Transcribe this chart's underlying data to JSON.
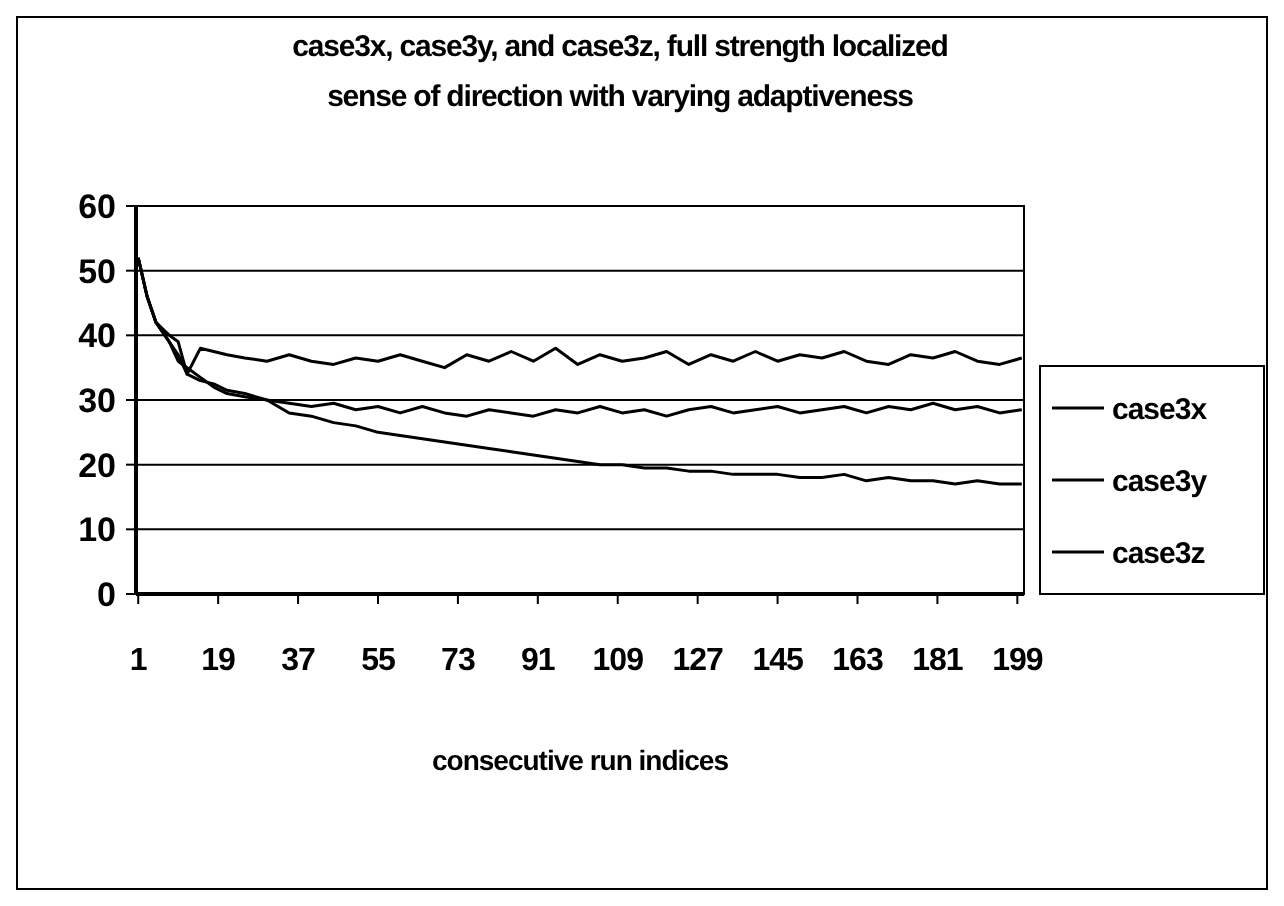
{
  "chart_data": {
    "type": "line",
    "title": "case3x, case3y, and case3z, full strength localized\nsense of direction with varying adaptiveness",
    "xlabel": "consecutive run indices",
    "x": [
      1,
      3,
      5,
      8,
      10,
      12,
      15,
      18,
      21,
      25,
      30,
      35,
      40,
      45,
      50,
      55,
      60,
      65,
      70,
      75,
      80,
      85,
      90,
      95,
      100,
      105,
      110,
      115,
      120,
      125,
      130,
      135,
      140,
      145,
      150,
      155,
      160,
      165,
      170,
      175,
      180,
      185,
      190,
      195,
      200
    ],
    "series": [
      {
        "name": "case3x",
        "color": "#000000",
        "values": [
          52,
          46,
          42,
          40,
          39,
          34,
          38,
          37.5,
          37,
          36.5,
          36,
          37,
          36,
          35.5,
          36.5,
          36,
          37,
          36,
          35,
          37,
          36,
          37.5,
          36,
          38,
          35.5,
          37,
          36,
          36.5,
          37.5,
          35.5,
          37,
          36,
          37.5,
          36,
          37,
          36.5,
          37.5,
          36,
          35.5,
          37,
          36.5,
          37.5,
          36,
          35.5,
          36.5
        ]
      },
      {
        "name": "case3y",
        "color": "#000000",
        "values": [
          52,
          46,
          42,
          39,
          37,
          34,
          33,
          32.5,
          31.5,
          31,
          30,
          29.5,
          29,
          29.5,
          28.5,
          29,
          28,
          29,
          28,
          27.5,
          28.5,
          28,
          27.5,
          28.5,
          28,
          29,
          28,
          28.5,
          27.5,
          28.5,
          29,
          28,
          28.5,
          29,
          28,
          28.5,
          29,
          28,
          29,
          28.5,
          29.5,
          28.5,
          29,
          28,
          28.5
        ]
      },
      {
        "name": "case3z",
        "color": "#000000",
        "values": [
          52,
          46,
          42,
          39,
          36,
          35,
          33.5,
          32,
          31,
          30.5,
          30,
          28,
          27.5,
          26.5,
          26,
          25,
          24.5,
          24,
          23.5,
          23,
          22.5,
          22,
          21.5,
          21,
          20.5,
          20,
          20,
          19.5,
          19.5,
          19,
          19,
          18.5,
          18.5,
          18.5,
          18,
          18,
          18.5,
          17.5,
          18,
          17.5,
          17.5,
          17,
          17.5,
          17,
          17
        ]
      }
    ],
    "xlim": [
      0.5,
      200.5
    ],
    "xticks": [
      1,
      19,
      37,
      55,
      73,
      91,
      109,
      127,
      145,
      163,
      181,
      199
    ],
    "ylim": [
      0,
      60
    ],
    "yticks": [
      0,
      10,
      20,
      30,
      40,
      50,
      60
    ],
    "grid": "y",
    "legend": "right",
    "line_style": "solid",
    "marker": "none"
  }
}
